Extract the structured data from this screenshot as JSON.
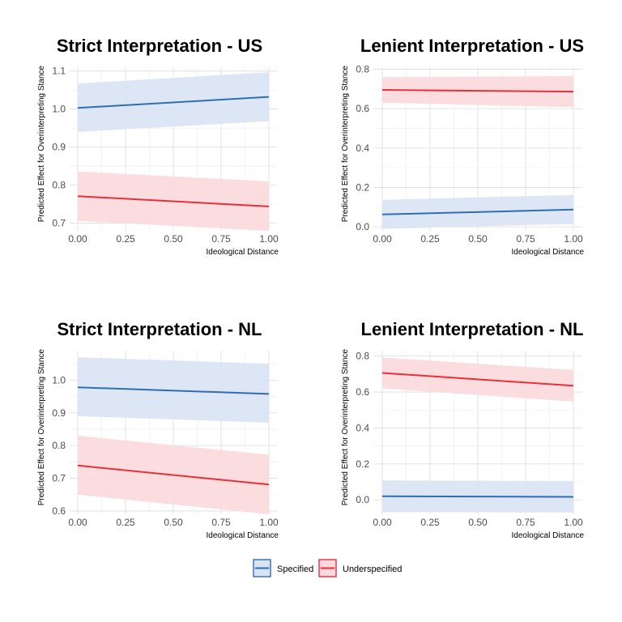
{
  "chart_data": [
    {
      "type": "line",
      "title": "Strict Interpretation - US",
      "xlabel": "Ideological Distance",
      "ylabel": "Predicted Effect for Overinterpreting Stance",
      "xlim": [
        0,
        1
      ],
      "ylim": [
        0.68,
        1.11
      ],
      "xticks": [
        "0.00",
        "0.25",
        "0.50",
        "0.75",
        "1.00"
      ],
      "yticks": [
        "0.7",
        "0.8",
        "0.9",
        "1.0",
        "1.1"
      ],
      "ytick_values": [
        0.7,
        0.8,
        0.9,
        1.0,
        1.1
      ],
      "grid": true,
      "series": [
        {
          "name": "Specified",
          "x": [
            0,
            1
          ],
          "y": [
            1.003,
            1.032
          ],
          "lower": [
            0.94,
            0.968
          ],
          "upper": [
            1.067,
            1.097
          ]
        },
        {
          "name": "Underspecified",
          "x": [
            0,
            1
          ],
          "y": [
            0.771,
            0.744
          ],
          "lower": [
            0.706,
            0.68
          ],
          "upper": [
            0.836,
            0.81
          ]
        }
      ]
    },
    {
      "type": "line",
      "title": "Lenient Interpretation - US",
      "xlabel": "Ideological Distance",
      "ylabel": "Predicted Effect for Overinterpreting Stance",
      "xlim": [
        0,
        1
      ],
      "ylim": [
        -0.02,
        0.81
      ],
      "xticks": [
        "0.00",
        "0.25",
        "0.50",
        "0.75",
        "1.00"
      ],
      "yticks": [
        "0.0",
        "0.2",
        "0.4",
        "0.6",
        "0.8"
      ],
      "ytick_values": [
        0.0,
        0.2,
        0.4,
        0.6,
        0.8
      ],
      "grid": true,
      "series": [
        {
          "name": "Specified",
          "x": [
            0,
            1
          ],
          "y": [
            0.063,
            0.088
          ],
          "lower": [
            -0.01,
            0.015
          ],
          "upper": [
            0.137,
            0.162
          ]
        },
        {
          "name": "Underspecified",
          "x": [
            0,
            1
          ],
          "y": [
            0.695,
            0.686
          ],
          "lower": [
            0.63,
            0.607
          ],
          "upper": [
            0.76,
            0.765
          ]
        }
      ]
    },
    {
      "type": "line",
      "title": "Strict Interpretation - NL",
      "xlabel": "Ideological Distance",
      "ylabel": "Predicted Effect for Overinterpreting Stance",
      "xlim": [
        0,
        1
      ],
      "ylim": [
        0.59,
        1.09
      ],
      "xticks": [
        "0.00",
        "0.25",
        "0.50",
        "0.75",
        "1.00"
      ],
      "yticks": [
        "0.6",
        "0.7",
        "0.8",
        "0.9",
        "1.0"
      ],
      "ytick_values": [
        0.6,
        0.7,
        0.8,
        0.9,
        1.0
      ],
      "grid": true,
      "series": [
        {
          "name": "Specified",
          "x": [
            0,
            1
          ],
          "y": [
            0.978,
            0.958
          ],
          "lower": [
            0.89,
            0.87
          ],
          "upper": [
            1.07,
            1.05
          ]
        },
        {
          "name": "Underspecified",
          "x": [
            0,
            1
          ],
          "y": [
            0.739,
            0.681
          ],
          "lower": [
            0.65,
            0.59
          ],
          "upper": [
            0.83,
            0.772
          ]
        }
      ]
    },
    {
      "type": "line",
      "title": "Lenient Interpretation - NL",
      "xlabel": "Ideological Distance",
      "ylabel": "Predicted Effect for Overinterpreting Stance",
      "xlim": [
        0,
        1
      ],
      "ylim": [
        -0.08,
        0.83
      ],
      "xticks": [
        "0.00",
        "0.25",
        "0.50",
        "0.75",
        "1.00"
      ],
      "yticks": [
        "0.0",
        "0.2",
        "0.4",
        "0.6",
        "0.8"
      ],
      "ytick_values": [
        0.0,
        0.2,
        0.4,
        0.6,
        0.8
      ],
      "grid": true,
      "series": [
        {
          "name": "Specified",
          "x": [
            0,
            1
          ],
          "y": [
            0.02,
            0.017
          ],
          "lower": [
            -0.068,
            -0.07
          ],
          "upper": [
            0.108,
            0.105
          ]
        },
        {
          "name": "Underspecified",
          "x": [
            0,
            1
          ],
          "y": [
            0.706,
            0.635
          ],
          "lower": [
            0.62,
            0.547
          ],
          "upper": [
            0.792,
            0.723
          ]
        }
      ]
    }
  ],
  "legend": {
    "position": "bottom",
    "items": [
      {
        "label": "Specified",
        "line_color": "#2f6db5",
        "fill_color": "#d8e3f3"
      },
      {
        "label": "Underspecified",
        "line_color": "#e8303a",
        "fill_color": "#fcd9dc"
      }
    ]
  },
  "colors": {
    "specified_line": "#2f6db5",
    "specified_band": "#d8e3f3",
    "underspecified_line": "#e8303a",
    "underspecified_band": "#fcd9dc"
  }
}
